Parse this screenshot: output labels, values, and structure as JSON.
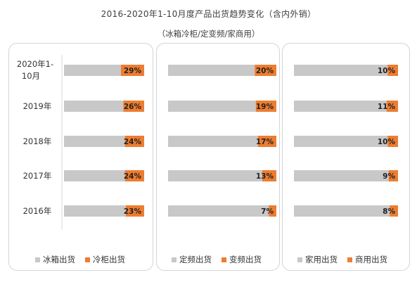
{
  "title": "2016-2020年1-10月度产品出货趋势变化（含内外销）",
  "subtitle": "（冰箱冷柜/定变频/家商用）",
  "colors": {
    "gray": "#c8c8c8",
    "orange": "#ed7d31"
  },
  "chart_data": [
    {
      "type": "bar",
      "stacked": "percent",
      "orientation": "horizontal",
      "categories": [
        "2020年1-10月",
        "2019年",
        "2018年",
        "2017年",
        "2016年"
      ],
      "series": [
        {
          "name": "冰箱出货",
          "values": [
            71,
            74,
            76,
            76,
            77
          ]
        },
        {
          "name": "冷柜出货",
          "values": [
            29,
            26,
            24,
            24,
            23
          ]
        }
      ],
      "data_labels": [
        "29%",
        "26%",
        "24%",
        "24%",
        "23%"
      ],
      "legend": "bottom"
    },
    {
      "type": "bar",
      "stacked": "percent",
      "orientation": "horizontal",
      "categories": [
        "2020年1-10月",
        "2019年",
        "2018年",
        "2017年",
        "2016年"
      ],
      "series": [
        {
          "name": "定频出货",
          "values": [
            80,
            81,
            83,
            87,
            93
          ]
        },
        {
          "name": "变频出货",
          "values": [
            20,
            19,
            17,
            13,
            7
          ]
        }
      ],
      "data_labels": [
        "20%",
        "19%",
        "17%",
        "13%",
        "7%"
      ],
      "legend": "bottom"
    },
    {
      "type": "bar",
      "stacked": "percent",
      "orientation": "horizontal",
      "categories": [
        "2020年1-10月",
        "2019年",
        "2018年",
        "2017年",
        "2016年"
      ],
      "series": [
        {
          "name": "家用出货",
          "values": [
            90,
            89,
            90,
            91,
            92
          ]
        },
        {
          "name": "商用出货",
          "values": [
            10,
            11,
            10,
            9,
            8
          ]
        }
      ],
      "data_labels": [
        "10%",
        "11%",
        "10%",
        "9%",
        "8%"
      ],
      "legend": "bottom"
    }
  ]
}
